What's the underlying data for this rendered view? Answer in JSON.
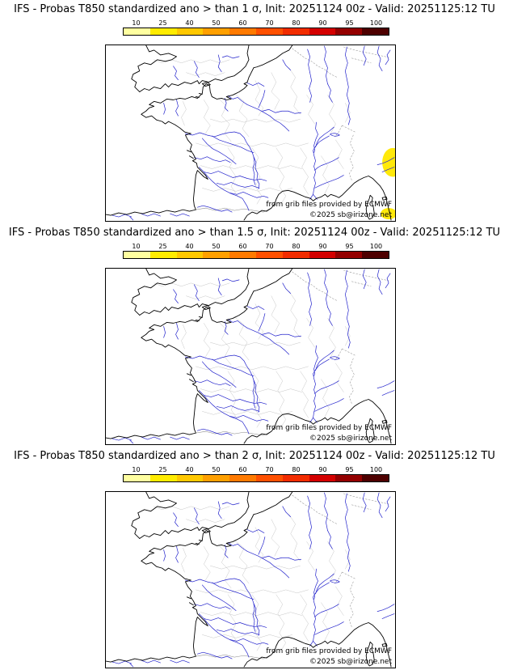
{
  "panels": [
    {
      "title": "IFS - Probas T850  standardized ano > than 1 σ, Init: 20251124 00z - Valid: 20251125:12 TU",
      "threshold_sigma": "1",
      "credit_ecmwf": "from grib files provided by ECMWF",
      "credit_copyright": "©2025 sb@irizone.net",
      "anomaly_regions": [
        {
          "location": "sea east of Corsica / Italian west coast at map right edge",
          "probability_band_pct": "10-25"
        },
        {
          "location": "bottom-right corner of map",
          "probability_band_pct": "10-25"
        }
      ]
    },
    {
      "title": "IFS - Probas T850  standardized ano > than 1.5 σ, Init: 20251124 00z - Valid: 20251125:12 TU",
      "threshold_sigma": "1.5",
      "credit_ecmwf": "from grib files provided by ECMWF",
      "credit_copyright": "©2025 sb@irizone.net",
      "anomaly_regions": []
    },
    {
      "title": "IFS - Probas T850  standardized ano > than 2 σ, Init: 20251124 00z - Valid: 20251125:12 TU",
      "threshold_sigma": "2",
      "credit_ecmwf": "from grib files provided by ECMWF",
      "credit_copyright": "©2025 sb@irizone.net",
      "anomaly_regions": []
    }
  ],
  "colorbar": {
    "tick_labels": [
      "10",
      "25",
      "40",
      "50",
      "60",
      "70",
      "80",
      "90",
      "95",
      "100"
    ],
    "segment_colors": [
      "#ffffa0",
      "#ffec00",
      "#ffc800",
      "#ffa000",
      "#ff7a00",
      "#ff5000",
      "#f22c00",
      "#d40000",
      "#940000",
      "#4e0000"
    ]
  },
  "map_style": {
    "coast_color": "#000000",
    "river_color": "#2323cc",
    "department_border_color": "#c6c6c6",
    "country_border_color": "#9a9a9a",
    "anomaly_fill": "#ffe90a"
  }
}
